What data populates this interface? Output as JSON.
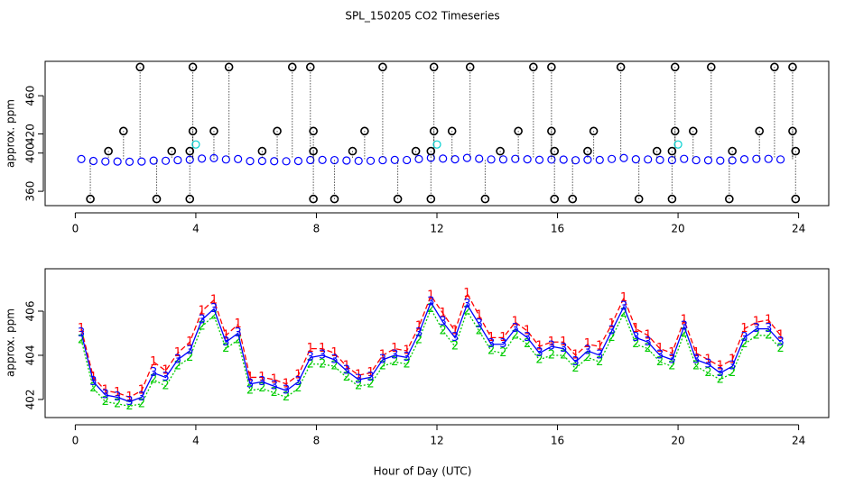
{
  "chart_data": [
    {
      "type": "scatter",
      "title": "SPL_150205  CO2 Timeseries",
      "ylabel": "approx. ppm",
      "xlim": [
        -1,
        25
      ],
      "ylim": [
        345,
        496
      ],
      "xticks": [
        0,
        4,
        8,
        12,
        16,
        20,
        24
      ],
      "yticks": [
        360,
        400,
        420,
        460
      ],
      "x": [
        0.2,
        0.6,
        1.0,
        1.4,
        1.8,
        2.2,
        2.6,
        3.0,
        3.4,
        3.8,
        4.2,
        4.6,
        5.0,
        5.4,
        5.8,
        6.2,
        6.6,
        7.0,
        7.4,
        7.8,
        8.2,
        8.6,
        9.0,
        9.4,
        9.8,
        10.2,
        10.6,
        11.0,
        11.4,
        11.8,
        12.2,
        12.6,
        13.0,
        13.4,
        13.8,
        14.2,
        14.6,
        15.0,
        15.4,
        15.8,
        16.2,
        16.6,
        17.0,
        17.4,
        17.8,
        18.2,
        18.6,
        19.0,
        19.4,
        19.8,
        20.2,
        20.6,
        21.0,
        21.4,
        21.8,
        22.2,
        22.6,
        23.0,
        23.4
      ],
      "series": [
        {
          "color": "#0000ff",
          "values": [
            393.7,
            391.7,
            391.2,
            391.1,
            390.9,
            391.1,
            392.1,
            391.9,
            392.6,
            393.0,
            394.2,
            394.7,
            393.3,
            393.7,
            391.6,
            391.7,
            391.5,
            391.4,
            391.7,
            392.7,
            392.8,
            392.6,
            392.2,
            391.8,
            391.9,
            392.6,
            392.8,
            392.7,
            393.7,
            395.0,
            394.2,
            393.5,
            394.9,
            394.1,
            393.3,
            393.3,
            393.9,
            393.5,
            392.9,
            393.2,
            393.1,
            392.5,
            393.0,
            392.8,
            393.8,
            394.8,
            393.5,
            393.3,
            392.8,
            392.6,
            393.9,
            392.6,
            392.4,
            392.1,
            392.3,
            393.5,
            393.9,
            393.9,
            393.3
          ]
        },
        {
          "color": "#000000",
          "x": [
            2.15,
            3.9,
            5.1,
            7.2,
            7.8,
            10.2,
            11.9,
            13.1,
            15.2,
            15.8,
            18.1,
            19.9,
            21.1,
            23.2,
            23.8,
            0.5,
            2.7,
            3.8,
            7.9,
            8.6,
            10.7,
            11.8,
            13.6,
            15.9,
            16.5,
            18.7,
            19.8,
            21.7,
            23.9,
            1.6,
            3.9,
            4.6,
            6.7,
            7.9,
            9.6,
            11.9,
            12.5,
            14.7,
            15.8,
            17.2,
            19.9,
            20.5,
            22.7,
            23.8,
            1.1,
            3.2,
            3.8,
            6.2,
            7.9,
            9.2,
            11.3,
            11.8,
            14.1,
            15.9,
            17.0,
            19.3,
            19.8,
            21.8,
            23.9
          ],
          "values": [
            490,
            490,
            490,
            490,
            490,
            490,
            490,
            490,
            490,
            490,
            490,
            490,
            490,
            490,
            490,
            352,
            352,
            352,
            352,
            352,
            352,
            352,
            352,
            352,
            352,
            352,
            352,
            352,
            352,
            423,
            423,
            423,
            423,
            423,
            423,
            423,
            423,
            423,
            423,
            423,
            423,
            423,
            423,
            423,
            402,
            402,
            402,
            402,
            402,
            402,
            402,
            402,
            402,
            402,
            402,
            402,
            402,
            402,
            402
          ]
        },
        {
          "color": "#00d0d0",
          "x": [
            4.0,
            12.0,
            20.0
          ],
          "values": [
            409,
            409,
            409
          ]
        }
      ]
    },
    {
      "type": "line",
      "ylabel": "approx. ppm",
      "xlabel": "Hour of Day (UTC)",
      "xlim": [
        -1,
        25
      ],
      "ylim": [
        401.18,
        407.92
      ],
      "xticks": [
        0,
        4,
        8,
        12,
        16,
        20,
        24
      ],
      "yticks": [
        402,
        404,
        406
      ],
      "x": [
        0.2,
        0.6,
        1.0,
        1.4,
        1.8,
        2.2,
        2.6,
        3.0,
        3.4,
        3.8,
        4.2,
        4.6,
        5.0,
        5.4,
        5.8,
        6.2,
        6.6,
        7.0,
        7.4,
        7.8,
        8.2,
        8.6,
        9.0,
        9.4,
        9.8,
        10.2,
        10.6,
        11.0,
        11.4,
        11.8,
        12.2,
        12.6,
        13.0,
        13.4,
        13.8,
        14.2,
        14.6,
        15.0,
        15.4,
        15.8,
        16.2,
        16.6,
        17.0,
        17.4,
        17.8,
        18.2,
        18.6,
        19.0,
        19.4,
        19.8,
        20.2,
        20.6,
        21.0,
        21.4,
        21.8,
        22.2,
        22.6,
        23.0,
        23.4
      ],
      "series": [
        {
          "marker": "1",
          "color": "#ff0000",
          "values": [
            405.2,
            403.0,
            402.4,
            402.3,
            402.1,
            402.4,
            403.7,
            403.3,
            404.1,
            404.6,
            406.0,
            406.5,
            404.9,
            405.4,
            403.0,
            403.0,
            402.9,
            402.7,
            403.1,
            404.3,
            404.3,
            404.1,
            403.5,
            403.1,
            403.2,
            404.0,
            404.3,
            404.2,
            405.3,
            406.7,
            405.9,
            405.1,
            406.8,
            405.8,
            404.8,
            404.8,
            405.5,
            405.1,
            404.4,
            404.6,
            404.6,
            404.0,
            404.5,
            404.4,
            405.4,
            406.6,
            405.2,
            404.9,
            404.3,
            404.1,
            405.6,
            404.1,
            403.8,
            403.5,
            403.8,
            405.2,
            405.5,
            405.6,
            404.9
          ]
        },
        {
          "marker": "2",
          "color": "#00cc00",
          "values": [
            404.7,
            402.5,
            401.9,
            401.8,
            401.7,
            401.8,
            402.9,
            402.6,
            403.5,
            403.9,
            405.3,
            405.8,
            404.3,
            404.7,
            402.4,
            402.5,
            402.3,
            402.1,
            402.5,
            403.6,
            403.6,
            403.5,
            403.0,
            402.6,
            402.7,
            403.5,
            403.7,
            403.6,
            404.7,
            406.1,
            405.1,
            404.4,
            406.0,
            405.1,
            404.2,
            404.1,
            404.9,
            404.5,
            403.8,
            404.0,
            404.0,
            403.4,
            403.9,
            403.7,
            404.8,
            405.9,
            404.5,
            404.3,
            403.7,
            403.5,
            405.0,
            403.5,
            403.2,
            402.9,
            403.2,
            404.5,
            404.9,
            404.9,
            404.3
          ]
        },
        {
          "marker": "3",
          "color": "#0000ff",
          "values": [
            405.0,
            402.8,
            402.2,
            402.1,
            401.9,
            402.1,
            403.2,
            403.0,
            403.8,
            404.2,
            405.6,
            406.1,
            404.6,
            405.0,
            402.7,
            402.8,
            402.6,
            402.4,
            402.8,
            403.9,
            404.0,
            403.8,
            403.3,
            402.9,
            403.0,
            403.8,
            404.0,
            403.9,
            405.0,
            406.4,
            405.5,
            404.8,
            406.3,
            405.4,
            404.5,
            404.5,
            405.2,
            404.8,
            404.1,
            404.4,
            404.3,
            403.7,
            404.2,
            404.0,
            405.1,
            406.2,
            404.8,
            404.6,
            404.0,
            403.8,
            405.3,
            403.8,
            403.6,
            403.2,
            403.5,
            404.8,
            405.2,
            405.2,
            404.6
          ]
        }
      ]
    }
  ]
}
